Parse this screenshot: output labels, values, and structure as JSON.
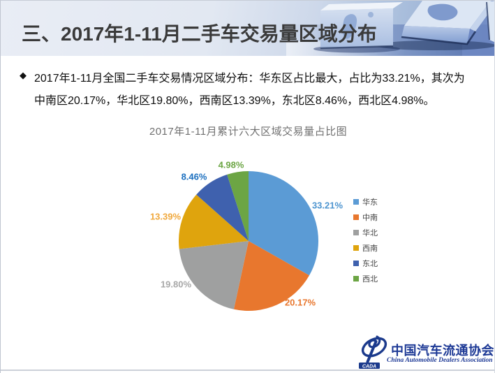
{
  "slide": {
    "title": "三、2017年1-11月二手车交易量区域分布",
    "bullet": "◆",
    "body_lines": [
      "2017年1-11月全国二手车交易情况区域分布：华东区占比最大，占比为33.21%，其次为",
      "中南区20.17%，华北区19.80%，西南区13.39%，东北区8.46%，西北区4.98%。"
    ]
  },
  "chart_data": {
    "type": "pie",
    "title": "2017年1-11月累计六大区域交易量占比图",
    "unit": "%",
    "legend_position": "right",
    "start_angle_deg": 0,
    "direction": "clockwise",
    "categories": [
      "华东",
      "中南",
      "华北",
      "西南",
      "东北",
      "西北"
    ],
    "values": [
      33.21,
      20.17,
      19.8,
      13.39,
      8.46,
      4.98
    ],
    "regions": [
      {
        "key": "huadong",
        "name": "华东",
        "value": 33.21,
        "label": "33.21%",
        "color": "#5B9BD5",
        "label_color": "#4E95D0"
      },
      {
        "key": "zhongnan",
        "name": "中南",
        "value": 20.17,
        "label": "20.17%",
        "color": "#E8772E",
        "label_color": "#E8772E"
      },
      {
        "key": "huabei",
        "name": "华北",
        "value": 19.8,
        "label": "19.80%",
        "color": "#9FA0A0",
        "label_color": "#A8A8A8"
      },
      {
        "key": "xinan",
        "name": "西南",
        "value": 13.39,
        "label": "13.39%",
        "color": "#DFA40D",
        "label_color": "#F0A83C"
      },
      {
        "key": "dongbei",
        "name": "东北",
        "value": 8.46,
        "label": "8.46%",
        "color": "#3F61AE",
        "label_color": "#1B6FBF"
      },
      {
        "key": "xibei",
        "name": "西北",
        "value": 4.98,
        "label": "4.98%",
        "color": "#6CA544",
        "label_color": "#6CA544"
      }
    ]
  },
  "footer": {
    "logo_abbr": "CADA",
    "logo_cn": "中国汽车流通协会",
    "logo_en": "China Automobile Dealers Association"
  }
}
